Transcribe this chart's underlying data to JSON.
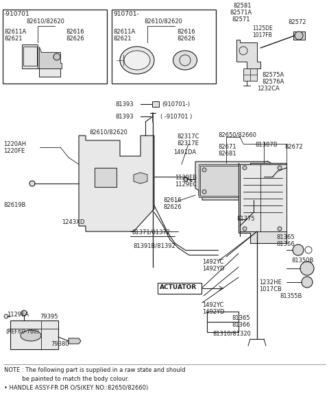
{
  "bg_color": "#ffffff",
  "line_color": "#1a1a1a",
  "text_color": "#1a1a1a",
  "fig_width": 4.8,
  "fig_height": 6.06,
  "note_line1": "NOTE : The following part is supplied in a raw state and should",
  "note_line2": "          be painted to match the body colour.",
  "note_line3": "• HANDLE ASSY-FR DR O/S(KEY NO.:82650/82660)"
}
